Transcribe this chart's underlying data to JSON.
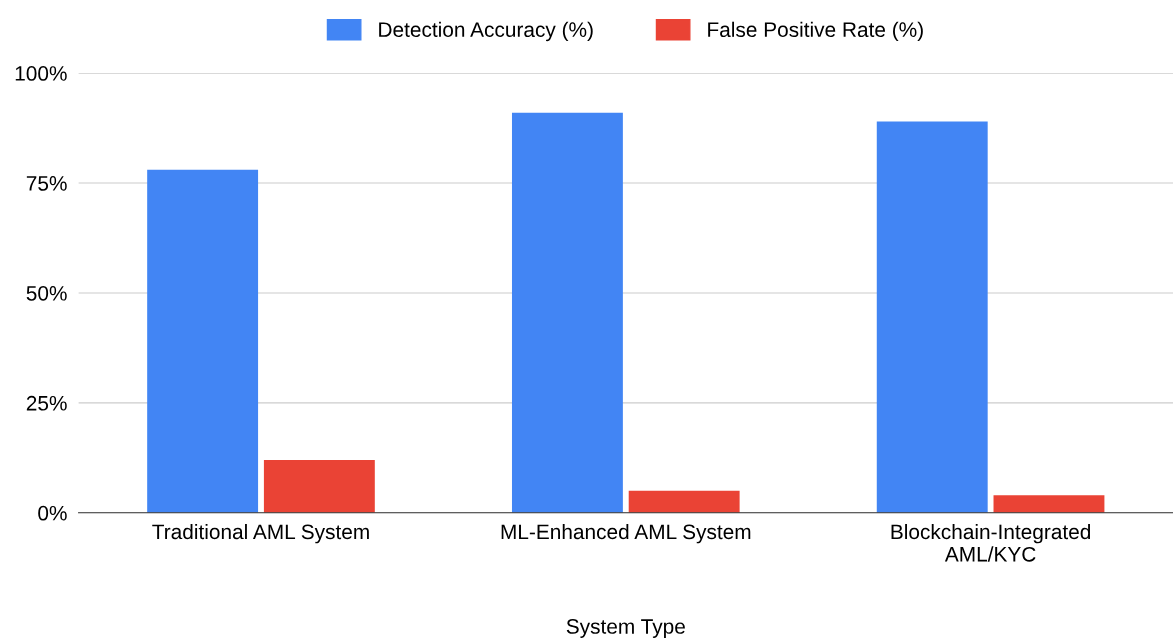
{
  "chart_data": {
    "type": "bar",
    "xlabel": "System Type",
    "categories": [
      "Traditional AML System",
      "ML-Enhanced AML System",
      "Blockchain-Integrated\nAML/KYC"
    ],
    "series": [
      {
        "name": "Detection Accuracy (%)",
        "color": "#4285f4",
        "values": [
          78,
          91,
          89
        ]
      },
      {
        "name": "False Positive Rate (%)",
        "color": "#ea4335",
        "values": [
          12,
          5,
          4
        ]
      }
    ],
    "ylim": [
      0,
      100
    ],
    "yticks": [
      {
        "value": 0,
        "label": "0%"
      },
      {
        "value": 25,
        "label": "25%"
      },
      {
        "value": 50,
        "label": "50%"
      },
      {
        "value": 75,
        "label": "75%"
      },
      {
        "value": 100,
        "label": "100%"
      }
    ],
    "grid": "y",
    "legend": "top"
  }
}
